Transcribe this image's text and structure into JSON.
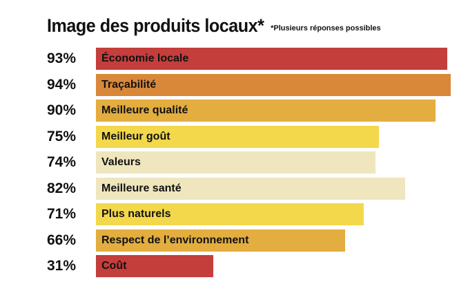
{
  "header": {
    "title": "Image des produits locaux*",
    "note": "*Plusieurs réponses possibles"
  },
  "chart_data": {
    "type": "bar",
    "orientation": "horizontal",
    "title": "Image des produits locaux*",
    "subtitle": "*Plusieurs réponses possibles",
    "xlim": [
      0,
      94
    ],
    "categories": [
      "Économie locale",
      "Traçabilité",
      "Meilleure qualité",
      "Meilleur goût",
      "Valeurs",
      "Meilleure santé",
      "Plus naturels",
      "Respect de l’environnement",
      "Coût"
    ],
    "values": [
      93,
      94,
      90,
      75,
      74,
      82,
      71,
      66,
      31
    ],
    "value_labels": [
      "93%",
      "94%",
      "90%",
      "75%",
      "74%",
      "82%",
      "71%",
      "66%",
      "31%"
    ],
    "colors": [
      "#c43e3c",
      "#d9883a",
      "#e3ad3f",
      "#f3d84c",
      "#efe6bd",
      "#efe6bd",
      "#f3d84c",
      "#e3ad3f",
      "#c43e3c"
    ],
    "grid": false,
    "legend": "none"
  }
}
